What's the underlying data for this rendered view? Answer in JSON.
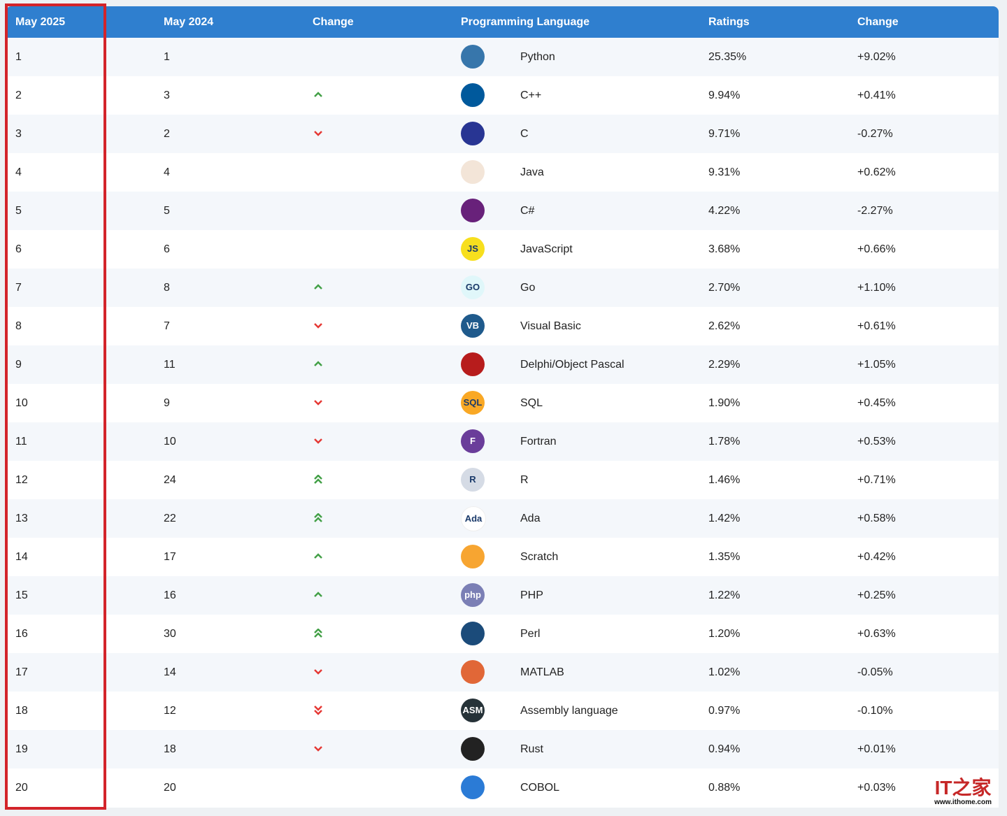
{
  "table": {
    "headers": [
      "May 2025",
      "May 2024",
      "Change",
      "Programming Language",
      "Ratings",
      "Change"
    ],
    "rows": [
      {
        "rank_2025": "1",
        "rank_2024": "1",
        "language": "Python",
        "rating": "25.35%",
        "change": "+9.02%",
        "icon_color": "#3776ab"
      },
      {
        "rank_2025": "2",
        "rank_2024": "3",
        "trend": "up",
        "language": "C++",
        "rating": "9.94%",
        "change": "+0.41%",
        "icon_color": "#00599c"
      },
      {
        "rank_2025": "3",
        "rank_2024": "2",
        "trend": "down",
        "language": "C",
        "rating": "9.71%",
        "change": "-0.27%",
        "icon_color": "#283593"
      },
      {
        "rank_2025": "4",
        "rank_2024": "4",
        "language": "Java",
        "rating": "9.31%",
        "change": "+0.62%",
        "icon_color": "#f3e5d8"
      },
      {
        "rank_2025": "5",
        "rank_2024": "5",
        "language": "C#",
        "rating": "4.22%",
        "change": "-2.27%",
        "icon_color": "#68217a"
      },
      {
        "rank_2025": "6",
        "rank_2024": "6",
        "language": "JavaScript",
        "rating": "3.68%",
        "change": "+0.66%",
        "icon": "JS",
        "icon_color": "#f7df1e"
      },
      {
        "rank_2025": "7",
        "rank_2024": "8",
        "trend": "up",
        "language": "Go",
        "rating": "2.70%",
        "change": "+1.10%",
        "icon": "GO",
        "icon_color": "#e0f7fa"
      },
      {
        "rank_2025": "8",
        "rank_2024": "7",
        "trend": "down",
        "language": "Visual Basic",
        "rating": "2.62%",
        "change": "+0.61%",
        "icon": "VB",
        "icon_color": "#1f5a8c"
      },
      {
        "rank_2025": "9",
        "rank_2024": "11",
        "trend": "up",
        "language": "Delphi/Object Pascal",
        "rating": "2.29%",
        "change": "+1.05%",
        "icon_color": "#b71c1c"
      },
      {
        "rank_2025": "10",
        "rank_2024": "9",
        "trend": "down",
        "language": "SQL",
        "rating": "1.90%",
        "change": "+0.45%",
        "icon": "SQL",
        "icon_color": "#f9a825"
      },
      {
        "rank_2025": "11",
        "rank_2024": "10",
        "trend": "down",
        "language": "Fortran",
        "rating": "1.78%",
        "change": "+0.53%",
        "icon": "F",
        "icon_color": "#6a3d9a"
      },
      {
        "rank_2025": "12",
        "rank_2024": "24",
        "trend": "up2",
        "language": "R",
        "rating": "1.46%",
        "change": "+0.71%",
        "icon": "R",
        "icon_color": "#d5dbe5"
      },
      {
        "rank_2025": "13",
        "rank_2024": "22",
        "trend": "up2",
        "language": "Ada",
        "rating": "1.42%",
        "change": "+0.58%",
        "icon": "Ada",
        "icon_color": "#ffffff"
      },
      {
        "rank_2025": "14",
        "rank_2024": "17",
        "trend": "up",
        "language": "Scratch",
        "rating": "1.35%",
        "change": "+0.42%",
        "icon_color": "#f7a531"
      },
      {
        "rank_2025": "15",
        "rank_2024": "16",
        "trend": "up",
        "language": "PHP",
        "rating": "1.22%",
        "change": "+0.25%",
        "icon": "php",
        "icon_color": "#7b7fb5"
      },
      {
        "rank_2025": "16",
        "rank_2024": "30",
        "trend": "up2",
        "language": "Perl",
        "rating": "1.20%",
        "change": "+0.63%",
        "icon_color": "#1b4b7a"
      },
      {
        "rank_2025": "17",
        "rank_2024": "14",
        "trend": "down",
        "language": "MATLAB",
        "rating": "1.02%",
        "change": "-0.05%",
        "icon_color": "#e16737"
      },
      {
        "rank_2025": "18",
        "rank_2024": "12",
        "trend": "down2",
        "language": "Assembly language",
        "rating": "0.97%",
        "change": "-0.10%",
        "icon": "ASM",
        "icon_color": "#263238"
      },
      {
        "rank_2025": "19",
        "rank_2024": "18",
        "trend": "down",
        "language": "Rust",
        "rating": "0.94%",
        "change": "+0.01%",
        "icon_color": "#222222"
      },
      {
        "rank_2025": "20",
        "rank_2024": "20",
        "language": "COBOL",
        "rating": "0.88%",
        "change": "+0.03%",
        "icon_color": "#2b7bd6"
      }
    ]
  },
  "watermark": {
    "logo": "IT之家",
    "url": "www.ithome.com"
  }
}
